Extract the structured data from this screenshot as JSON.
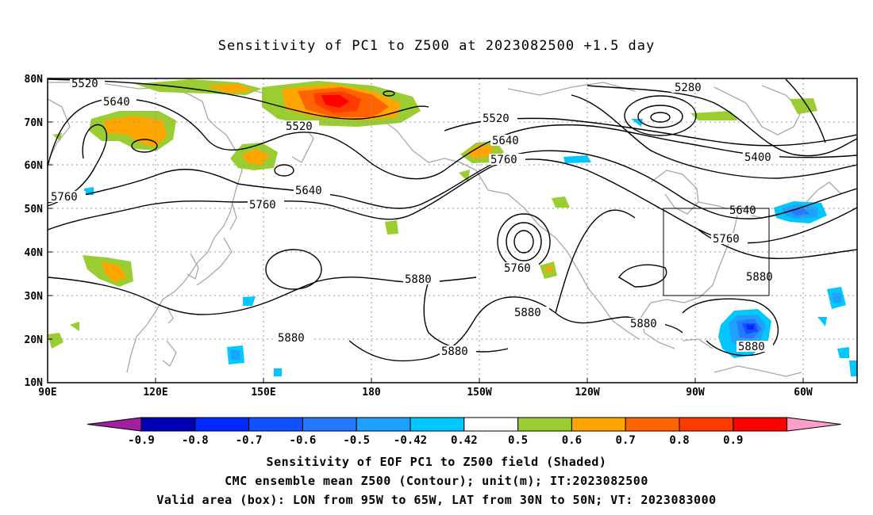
{
  "title": "Sensitivity of PC1 to Z500 at 2023082500 +1.5 day",
  "map": {
    "lat_labels": [
      "80N",
      "70N",
      "60N",
      "50N",
      "40N",
      "30N",
      "20N",
      "10N"
    ],
    "lon_labels": [
      "90E",
      "120E",
      "150E",
      "180",
      "150W",
      "120W",
      "90W",
      "60W"
    ],
    "contour_labels": [
      "5520",
      "5640",
      "5520",
      "5280",
      "5520",
      "5640",
      "5760",
      "5400",
      "5640",
      "5760",
      "5760",
      "5760",
      "5640",
      "5880",
      "5760",
      "5880",
      "5880",
      "5880",
      "5880",
      "5880",
      "5880"
    ],
    "valid_box": {
      "lon_from": "95W",
      "lon_to": "65W",
      "lat_from": "30N",
      "lat_to": "50N"
    }
  },
  "colorbar": {
    "labels": [
      "-0.9",
      "-0.8",
      "-0.7",
      "-0.6",
      "-0.5",
      "-0.42",
      "0.42",
      "0.5",
      "0.6",
      "0.7",
      "0.8",
      "0.9"
    ],
    "colors": [
      "#a020a0",
      "#0000b4",
      "#0028ff",
      "#0f50ff",
      "#2878ff",
      "#1ea0ff",
      "#00c8ff",
      "#ffffff",
      "#9acd32",
      "#ffa500",
      "#ff6400",
      "#ff3c00",
      "#ff0000",
      "#ff9ec8"
    ]
  },
  "captions": {
    "line1": "Sensitivity of EOF PC1 to Z500 field (Shaded)",
    "line2": "CMC ensemble mean Z500 (Contour); unit(m); IT:2023082500",
    "line3": "Valid area (box): LON from 95W to 65W, LAT from 30N to 50N; VT: 2023083000"
  }
}
